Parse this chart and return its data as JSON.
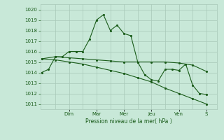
{
  "xlabel": "Pression niveau de la mer( hPa )",
  "ylim": [
    1010.5,
    1020.5
  ],
  "yticks": [
    1011,
    1012,
    1013,
    1014,
    1015,
    1016,
    1017,
    1018,
    1019,
    1020
  ],
  "bg_color": "#c8e8d8",
  "grid_color": "#a8c8b8",
  "line_color": "#1a5c1a",
  "day_labels": [
    "Dim",
    "Mar",
    "Mer",
    "Jeu",
    "Ven",
    "S"
  ],
  "day_positions": [
    1.0,
    2.0,
    3.0,
    4.0,
    5.0,
    6.0
  ],
  "xlim": [
    -0.05,
    6.4
  ],
  "line1_x": [
    0.0,
    0.25,
    0.5,
    0.75,
    1.0,
    1.25,
    1.5,
    1.75,
    2.0,
    2.25,
    2.5,
    2.75,
    3.0,
    3.25,
    3.5,
    3.75,
    4.0,
    4.25,
    4.5,
    4.75,
    5.0,
    5.25,
    5.5,
    5.75,
    6.0
  ],
  "line1_y": [
    1014.0,
    1014.3,
    1015.5,
    1015.5,
    1016.0,
    1016.0,
    1016.0,
    1017.2,
    1019.0,
    1019.5,
    1018.0,
    1018.5,
    1017.7,
    1017.5,
    1015.0,
    1013.8,
    1013.3,
    1013.2,
    1014.3,
    1014.3,
    1014.2,
    1014.8,
    1012.8,
    1012.0,
    1011.9
  ],
  "line2_x": [
    0.0,
    0.5,
    1.0,
    1.5,
    2.0,
    2.5,
    3.0,
    3.5,
    4.0,
    4.5,
    5.0,
    5.5,
    6.0
  ],
  "line2_y": [
    1015.3,
    1015.5,
    1015.4,
    1015.3,
    1015.2,
    1015.1,
    1015.0,
    1015.0,
    1015.0,
    1015.0,
    1014.9,
    1014.7,
    1014.1
  ],
  "line3_x": [
    0.0,
    0.5,
    1.0,
    1.5,
    2.0,
    2.5,
    3.0,
    3.5,
    4.0,
    4.5,
    5.0,
    5.5,
    6.0
  ],
  "line3_y": [
    1015.3,
    1015.2,
    1015.0,
    1014.8,
    1014.5,
    1014.2,
    1013.9,
    1013.5,
    1013.1,
    1012.5,
    1012.0,
    1011.5,
    1011.0
  ]
}
